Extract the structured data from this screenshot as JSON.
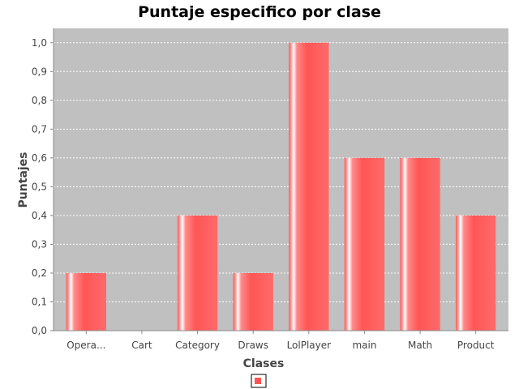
{
  "chart_data": {
    "type": "bar",
    "title": "Puntaje especifico por clase",
    "xlabel": "Clases",
    "ylabel": "Puntajes",
    "categories": [
      "Opera...",
      "Cart",
      "Category",
      "Draws",
      "LolPlayer",
      "main",
      "Math",
      "Product"
    ],
    "series": [
      {
        "values": [
          0.2,
          0.0,
          0.4,
          0.2,
          1.0,
          0.6,
          0.6,
          0.4
        ]
      }
    ],
    "ylim": [
      0,
      1.05
    ],
    "yticks": [
      "0,0",
      "0,1",
      "0,2",
      "0,3",
      "0,4",
      "0,5",
      "0,6",
      "0,7",
      "0,8",
      "0,9",
      "1,0"
    ],
    "grid": true,
    "legend": "bottom-center",
    "colors": {
      "bar": "#ff5555",
      "plot_background": "#c0c0c0",
      "grid": "#ffffff"
    }
  }
}
